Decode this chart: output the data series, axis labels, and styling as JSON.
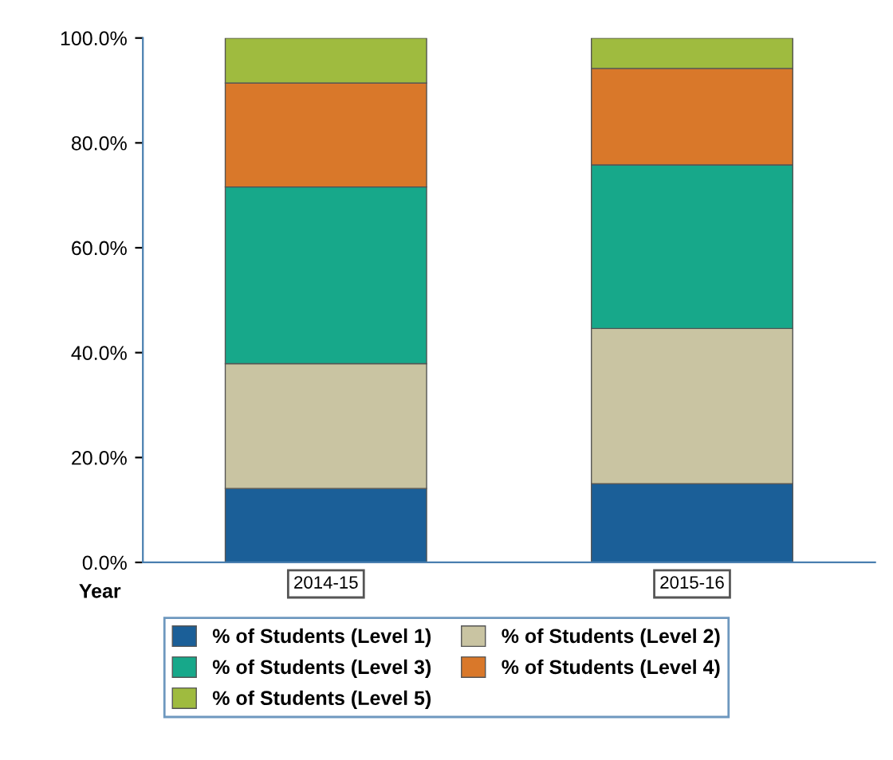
{
  "chart_data": {
    "type": "bar",
    "stacked": true,
    "xlabel": "Year",
    "categories": [
      "2014-15",
      "2015-16"
    ],
    "series": [
      {
        "name": "% of Students (Level 1)",
        "color": "#1b5f98",
        "values": [
          14.1,
          15.0
        ]
      },
      {
        "name": "% of Students (Level 2)",
        "color": "#c9c4a2",
        "values": [
          23.8,
          29.6
        ]
      },
      {
        "name": "% of Students (Level 3)",
        "color": "#17a88a",
        "values": [
          33.7,
          31.2
        ]
      },
      {
        "name": "% of Students (Level 4)",
        "color": "#d9782a",
        "values": [
          19.8,
          18.4
        ]
      },
      {
        "name": "% of Students (Level 5)",
        "color": "#9fbb3f",
        "values": [
          8.6,
          5.8
        ]
      }
    ],
    "ylim": [
      0,
      100
    ],
    "yticks": [
      {
        "value": 0,
        "label": "0.0%"
      },
      {
        "value": 20,
        "label": "20.0%"
      },
      {
        "value": 40,
        "label": "40.0%"
      },
      {
        "value": 60,
        "label": "60.0%"
      },
      {
        "value": 80,
        "label": "80.0%"
      },
      {
        "value": 100,
        "label": "100.0%"
      }
    ],
    "grid": false,
    "legend": "bottom"
  }
}
